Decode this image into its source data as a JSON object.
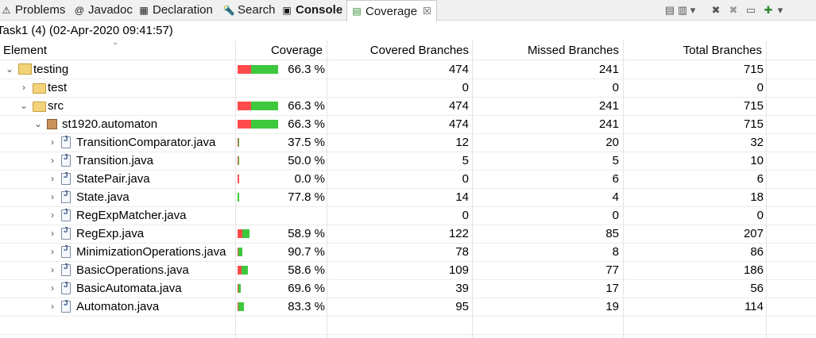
{
  "tabs": [
    {
      "label": "Problems",
      "icon": "problems-icon",
      "glyph": "⚠"
    },
    {
      "label": "Javadoc",
      "icon": "javadoc-icon",
      "glyph": "@"
    },
    {
      "label": "Declaration",
      "icon": "declaration-icon",
      "glyph": "▦"
    },
    {
      "label": "Search",
      "icon": "search-icon",
      "glyph": "🔦"
    },
    {
      "label": "Console",
      "icon": "console-icon",
      "glyph": "▣"
    },
    {
      "label": "Coverage",
      "icon": "coverage-icon",
      "glyph": "▤",
      "close": "☒"
    }
  ],
  "toolbar_icons": [
    "coverage-session-icon",
    "link-icon",
    "dropdown-icon",
    "remove-session-icon",
    "remove-all-sessions-icon",
    "collapse-all-icon",
    "relaunch-icon",
    "view-menu-icon"
  ],
  "toolbar_glyphs": [
    "▤",
    "▥",
    "▾",
    "✖",
    "✖",
    "▭",
    "✚",
    "▾"
  ],
  "session": "Task1 (4) (02-Apr-2020 09:41:57)",
  "columns": [
    "Element",
    "Coverage",
    "Covered Branches",
    "Missed Branches",
    "Total Branches"
  ],
  "rows": [
    {
      "name": "testing",
      "type": "project",
      "twisty": "⌄",
      "coverage": "66.3 %",
      "ratio": 0.663,
      "covered": "474",
      "missed": "241",
      "total": "715"
    },
    {
      "name": "test",
      "type": "folder",
      "twisty": "›",
      "coverage": "",
      "ratio": null,
      "covered": "0",
      "missed": "0",
      "total": "0"
    },
    {
      "name": "src",
      "type": "folder",
      "twisty": "⌄",
      "coverage": "66.3 %",
      "ratio": 0.663,
      "covered": "474",
      "missed": "241",
      "total": "715"
    },
    {
      "name": "st1920.automaton",
      "type": "package",
      "twisty": "⌄",
      "coverage": "66.3 %",
      "ratio": 0.663,
      "covered": "474",
      "missed": "241",
      "total": "715"
    },
    {
      "name": "TransitionComparator.java",
      "type": "java",
      "twisty": "›",
      "coverage": "37.5 %",
      "ratio": 0.375,
      "covered": "12",
      "missed": "20",
      "total": "32"
    },
    {
      "name": "Transition.java",
      "type": "java",
      "twisty": "›",
      "coverage": "50.0 %",
      "ratio": 0.5,
      "covered": "5",
      "missed": "5",
      "total": "10"
    },
    {
      "name": "StatePair.java",
      "type": "java",
      "twisty": "›",
      "coverage": "0.0 %",
      "ratio": 0.0,
      "covered": "0",
      "missed": "6",
      "total": "6"
    },
    {
      "name": "State.java",
      "type": "java",
      "twisty": "›",
      "coverage": "77.8 %",
      "ratio": 0.778,
      "covered": "14",
      "missed": "4",
      "total": "18"
    },
    {
      "name": "RegExpMatcher.java",
      "type": "java",
      "twisty": "›",
      "coverage": "",
      "ratio": null,
      "covered": "0",
      "missed": "0",
      "total": "0"
    },
    {
      "name": "RegExp.java",
      "type": "java",
      "twisty": "›",
      "coverage": "58.9 %",
      "ratio": 0.589,
      "covered": "122",
      "missed": "85",
      "total": "207"
    },
    {
      "name": "MinimizationOperations.java",
      "type": "java",
      "twisty": "›",
      "coverage": "90.7 %",
      "ratio": 0.907,
      "covered": "78",
      "missed": "8",
      "total": "86"
    },
    {
      "name": "BasicOperations.java",
      "type": "java",
      "twisty": "›",
      "coverage": "58.6 %",
      "ratio": 0.586,
      "covered": "109",
      "missed": "77",
      "total": "186"
    },
    {
      "name": "BasicAutomata.java",
      "type": "java",
      "twisty": "›",
      "coverage": "69.6 %",
      "ratio": 0.696,
      "covered": "39",
      "missed": "17",
      "total": "56"
    },
    {
      "name": "Automaton.java",
      "type": "java",
      "twisty": "›",
      "coverage": "83.3 %",
      "ratio": 0.833,
      "covered": "95",
      "missed": "19",
      "total": "114"
    }
  ],
  "colors": {
    "covered": "#3dc83d",
    "missed": "#ff4b4b"
  }
}
